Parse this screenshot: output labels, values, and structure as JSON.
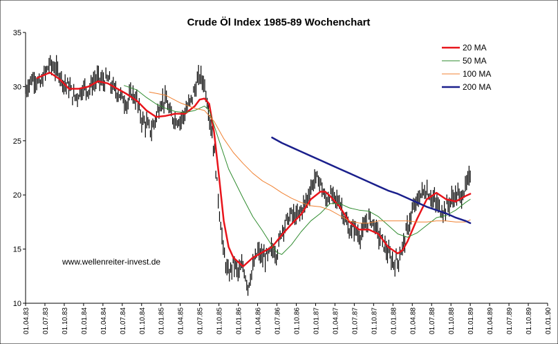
{
  "chart_data": {
    "type": "line",
    "title": "Crude Öl Index 1985-89 Wochenchart",
    "annotation": "www.wellenreiter-invest.de",
    "ylim": [
      10,
      35
    ],
    "yticks": [
      10,
      15,
      20,
      25,
      30,
      35
    ],
    "y_tick_labels": [
      "10",
      "15",
      "20",
      "25",
      "30",
      "35"
    ],
    "x_tick_labels": [
      "01.04.83",
      "01.07.83",
      "01.10.83",
      "01.01.84",
      "01.04.84",
      "01.07.84",
      "01.10.84",
      "01.01.85",
      "01.04.85",
      "01.07.85",
      "01.10.85",
      "01.01.86",
      "01.04.86",
      "01.07.86",
      "01.10.86",
      "01.01.87",
      "01.04.87",
      "01.07.87",
      "01.10.87",
      "01.01.88",
      "01.04.88",
      "01.07.88",
      "01.10.88",
      "01.01.89",
      "01.04.89",
      "01.07.89",
      "01.10.89",
      "01.01.90"
    ],
    "grid": false,
    "legend_position": "top-right",
    "colors": {
      "price": "#000000",
      "ma20": "#e8141b",
      "ma50": "#2e8b2e",
      "ma100": "#f08030",
      "ma200": "#1a1f8c"
    },
    "price_points": [
      [
        0,
        29.6
      ],
      [
        0.5,
        30.6
      ],
      [
        1,
        30.8
      ],
      [
        1.5,
        30.1
      ],
      [
        2,
        31.2
      ],
      [
        2.5,
        32.1
      ],
      [
        3,
        31.7
      ],
      [
        3.5,
        31.2
      ],
      [
        4,
        30.3
      ],
      [
        4.5,
        30.0
      ],
      [
        5,
        29.0
      ],
      [
        5.5,
        29.3
      ],
      [
        6,
        29.9
      ],
      [
        6.5,
        29.7
      ],
      [
        7,
        30.4
      ],
      [
        7.5,
        30.8
      ],
      [
        8,
        30.4
      ],
      [
        8.5,
        30.7
      ],
      [
        9,
        29.9
      ],
      [
        9.5,
        29.5
      ],
      [
        10,
        29.0
      ],
      [
        10.5,
        28.4
      ],
      [
        11,
        29.4
      ],
      [
        11.5,
        28.7
      ],
      [
        12,
        27.0
      ],
      [
        12.5,
        26.5
      ],
      [
        13,
        25.9
      ],
      [
        13.5,
        27.2
      ],
      [
        14,
        28.6
      ],
      [
        14.5,
        28.8
      ],
      [
        15,
        27.3
      ],
      [
        15.5,
        27.0
      ],
      [
        16,
        26.9
      ],
      [
        16.5,
        27.6
      ],
      [
        17,
        28.5
      ],
      [
        17.5,
        29.7
      ],
      [
        18,
        31.0
      ],
      [
        18.5,
        30.3
      ],
      [
        19,
        27.5
      ],
      [
        19.5,
        24.2
      ],
      [
        20,
        19.0
      ],
      [
        20.5,
        14.5
      ],
      [
        21,
        12.5
      ],
      [
        21.5,
        13.8
      ],
      [
        22,
        12.8
      ],
      [
        22.5,
        13.4
      ],
      [
        23,
        11.6
      ],
      [
        23.5,
        13.2
      ],
      [
        24,
        14.8
      ],
      [
        24.5,
        14.2
      ],
      [
        25,
        14.3
      ],
      [
        25.5,
        15.0
      ],
      [
        26,
        14.6
      ],
      [
        26.5,
        16.8
      ],
      [
        27,
        17.6
      ],
      [
        27.5,
        18.2
      ],
      [
        28,
        17.9
      ],
      [
        28.5,
        18.6
      ],
      [
        29,
        19.3
      ],
      [
        29.5,
        20.6
      ],
      [
        30,
        21.6
      ],
      [
        30.5,
        21.2
      ],
      [
        31,
        19.5
      ],
      [
        31.5,
        20.0
      ],
      [
        32,
        19.6
      ],
      [
        32.5,
        19.4
      ],
      [
        33,
        17.9
      ],
      [
        33.5,
        16.6
      ],
      [
        34,
        17.0
      ],
      [
        34.5,
        16.2
      ],
      [
        35,
        16.8
      ],
      [
        35.5,
        17.8
      ],
      [
        36,
        17.5
      ],
      [
        36.5,
        16.3
      ],
      [
        37,
        15.5
      ],
      [
        37.5,
        14.6
      ],
      [
        38,
        13.7
      ],
      [
        38.5,
        13.9
      ],
      [
        39,
        15.2
      ],
      [
        39.5,
        16.9
      ],
      [
        40,
        18.4
      ],
      [
        40.5,
        19.4
      ],
      [
        41,
        20.2
      ],
      [
        41.5,
        20.4
      ],
      [
        42,
        19.7
      ],
      [
        42.5,
        19.2
      ],
      [
        43,
        18.5
      ],
      [
        43.5,
        18.8
      ],
      [
        44,
        19.5
      ],
      [
        44.5,
        20.0
      ],
      [
        45,
        19.8
      ],
      [
        45.5,
        20.6
      ],
      [
        46,
        21.8
      ]
    ],
    "series": [
      {
        "name": "20 MA",
        "points": [
          [
            1.2,
            30.8
          ],
          [
            2.5,
            31.3
          ],
          [
            3.5,
            30.7
          ],
          [
            4.5,
            29.8
          ],
          [
            5.5,
            29.8
          ],
          [
            6.5,
            30.0
          ],
          [
            7.5,
            30.5
          ],
          [
            8.5,
            30.3
          ],
          [
            9.5,
            29.8
          ],
          [
            10.5,
            29.3
          ],
          [
            11.5,
            28.7
          ],
          [
            12.5,
            27.8
          ],
          [
            13.5,
            27.2
          ],
          [
            14.5,
            27.3
          ],
          [
            15.5,
            27.5
          ],
          [
            16.5,
            27.5
          ],
          [
            17.5,
            28.2
          ],
          [
            18,
            28.8
          ],
          [
            18.5,
            28.9
          ],
          [
            19,
            28.4
          ],
          [
            19.5,
            25.8
          ],
          [
            20,
            21.8
          ],
          [
            20.5,
            17.6
          ],
          [
            21,
            15.2
          ],
          [
            21.5,
            14.2
          ],
          [
            22.5,
            13.4
          ],
          [
            23.5,
            14.2
          ],
          [
            24.5,
            14.7
          ],
          [
            25.5,
            15.2
          ],
          [
            26.5,
            16.3
          ],
          [
            27.5,
            17.3
          ],
          [
            28.5,
            18.2
          ],
          [
            29.5,
            19.6
          ],
          [
            30.5,
            20.3
          ],
          [
            31,
            20.3
          ],
          [
            31.5,
            19.9
          ],
          [
            32.5,
            18.9
          ],
          [
            33.5,
            17.5
          ],
          [
            34.5,
            16.8
          ],
          [
            35.5,
            16.8
          ],
          [
            36.5,
            16.4
          ],
          [
            37.5,
            15.2
          ],
          [
            38.5,
            14.6
          ],
          [
            39,
            14.9
          ],
          [
            39.5,
            15.7
          ],
          [
            40.5,
            17.8
          ],
          [
            41.5,
            19.6
          ],
          [
            42.5,
            20.2
          ],
          [
            43.5,
            19.6
          ],
          [
            44.5,
            19.4
          ],
          [
            45.5,
            19.9
          ],
          [
            46,
            20.1
          ]
        ]
      },
      {
        "name": "50 MA",
        "points": [
          [
            10.2,
            30.1
          ],
          [
            11.5,
            29.7
          ],
          [
            12.5,
            29.0
          ],
          [
            13.5,
            28.4
          ],
          [
            14.5,
            28.0
          ],
          [
            15.5,
            27.7
          ],
          [
            16.5,
            27.6
          ],
          [
            17.5,
            27.8
          ],
          [
            18.5,
            28.2
          ],
          [
            19,
            27.8
          ],
          [
            19.8,
            25.6
          ],
          [
            21,
            22.4
          ],
          [
            22.5,
            19.7
          ],
          [
            23.5,
            18.0
          ],
          [
            24.5,
            16.7
          ],
          [
            25.5,
            15.3
          ],
          [
            26,
            14.7
          ],
          [
            26.5,
            14.5
          ],
          [
            27.5,
            15.4
          ],
          [
            28.5,
            16.6
          ],
          [
            29.5,
            17.6
          ],
          [
            30.5,
            18.3
          ],
          [
            31.5,
            19.2
          ],
          [
            32.5,
            19.2
          ],
          [
            33.5,
            18.8
          ],
          [
            34.5,
            18.6
          ],
          [
            35.5,
            18.5
          ],
          [
            36.5,
            18.0
          ],
          [
            37.5,
            17.2
          ],
          [
            38.5,
            16.4
          ],
          [
            39.5,
            16.1
          ],
          [
            40.5,
            16.5
          ],
          [
            41.5,
            17.2
          ],
          [
            42.5,
            17.9
          ],
          [
            43.5,
            18.1
          ],
          [
            44.5,
            18.6
          ],
          [
            45.5,
            19.3
          ],
          [
            46,
            19.6
          ]
        ]
      },
      {
        "name": "100 MA",
        "points": [
          [
            12.8,
            29.5
          ],
          [
            14.5,
            29.2
          ],
          [
            16,
            28.5
          ],
          [
            17.5,
            28.0
          ],
          [
            18.5,
            27.8
          ],
          [
            19.5,
            26.8
          ],
          [
            20.5,
            25.2
          ],
          [
            21.5,
            23.9
          ],
          [
            22.5,
            22.9
          ],
          [
            23.5,
            22.0
          ],
          [
            24.5,
            21.3
          ],
          [
            25.5,
            20.8
          ],
          [
            26.5,
            20.2
          ],
          [
            27.5,
            19.7
          ],
          [
            28.5,
            19.3
          ],
          [
            29.5,
            19.0
          ],
          [
            30.5,
            18.9
          ],
          [
            31.5,
            18.6
          ],
          [
            32.5,
            18.1
          ],
          [
            33.5,
            17.6
          ],
          [
            34.5,
            17.4
          ],
          [
            35.5,
            17.4
          ],
          [
            36.5,
            17.6
          ],
          [
            37.5,
            17.6
          ],
          [
            38.5,
            17.6
          ],
          [
            39.5,
            17.6
          ],
          [
            40.5,
            17.5
          ],
          [
            41.5,
            17.5
          ],
          [
            42.5,
            17.6
          ],
          [
            43.5,
            17.6
          ],
          [
            44.5,
            17.5
          ],
          [
            45.5,
            17.5
          ],
          [
            46,
            17.7
          ]
        ]
      },
      {
        "name": "200 MA",
        "points": [
          [
            25.5,
            25.3
          ],
          [
            26.5,
            24.8
          ],
          [
            27.5,
            24.4
          ],
          [
            28.5,
            24.0
          ],
          [
            29.5,
            23.6
          ],
          [
            30.5,
            23.2
          ],
          [
            31.5,
            22.8
          ],
          [
            32.5,
            22.4
          ],
          [
            33.5,
            22.0
          ],
          [
            34.5,
            21.6
          ],
          [
            35.5,
            21.2
          ],
          [
            36.5,
            20.8
          ],
          [
            37.5,
            20.4
          ],
          [
            38.5,
            20.1
          ],
          [
            39.5,
            19.7
          ],
          [
            40.5,
            19.3
          ],
          [
            41.5,
            18.9
          ],
          [
            42.5,
            18.6
          ],
          [
            43.5,
            18.3
          ],
          [
            44.5,
            17.9
          ],
          [
            45.5,
            17.6
          ],
          [
            46,
            17.4
          ]
        ]
      }
    ]
  }
}
